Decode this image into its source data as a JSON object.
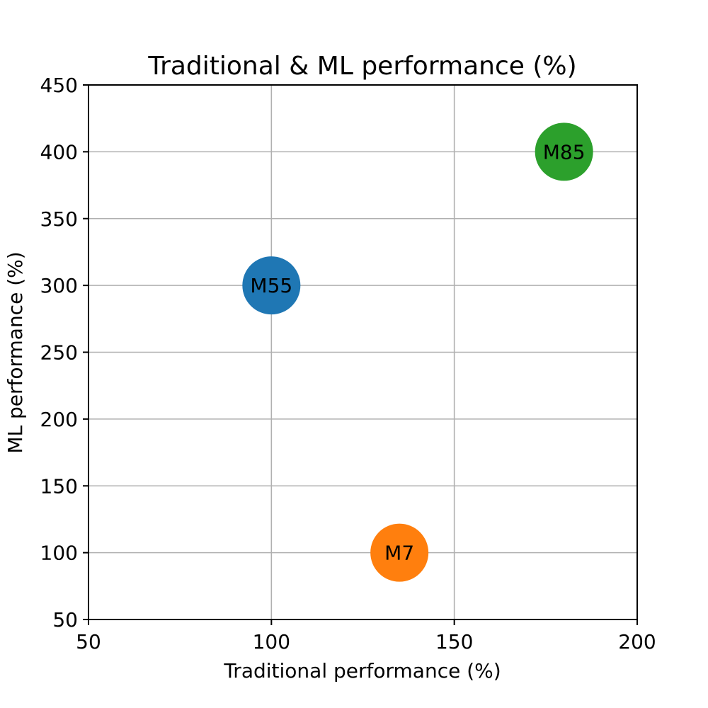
{
  "chart_data": {
    "type": "scatter",
    "title": "Traditional & ML performance (%)",
    "xlabel": "Traditional performance (%)",
    "ylabel": "ML performance (%)",
    "xlim": [
      50,
      200
    ],
    "ylim": [
      50,
      450
    ],
    "xticks": [
      "50",
      "100",
      "150",
      "200"
    ],
    "yticks": [
      "50",
      "100",
      "150",
      "200",
      "250",
      "300",
      "350",
      "400",
      "450"
    ],
    "grid": true,
    "points": [
      {
        "label": "M55",
        "x": 100,
        "y": 300,
        "color": "#1f77b4"
      },
      {
        "label": "M7",
        "x": 135,
        "y": 100,
        "color": "#ff7f0e"
      },
      {
        "label": "M85",
        "x": 180,
        "y": 400,
        "color": "#2ca02c"
      }
    ]
  }
}
